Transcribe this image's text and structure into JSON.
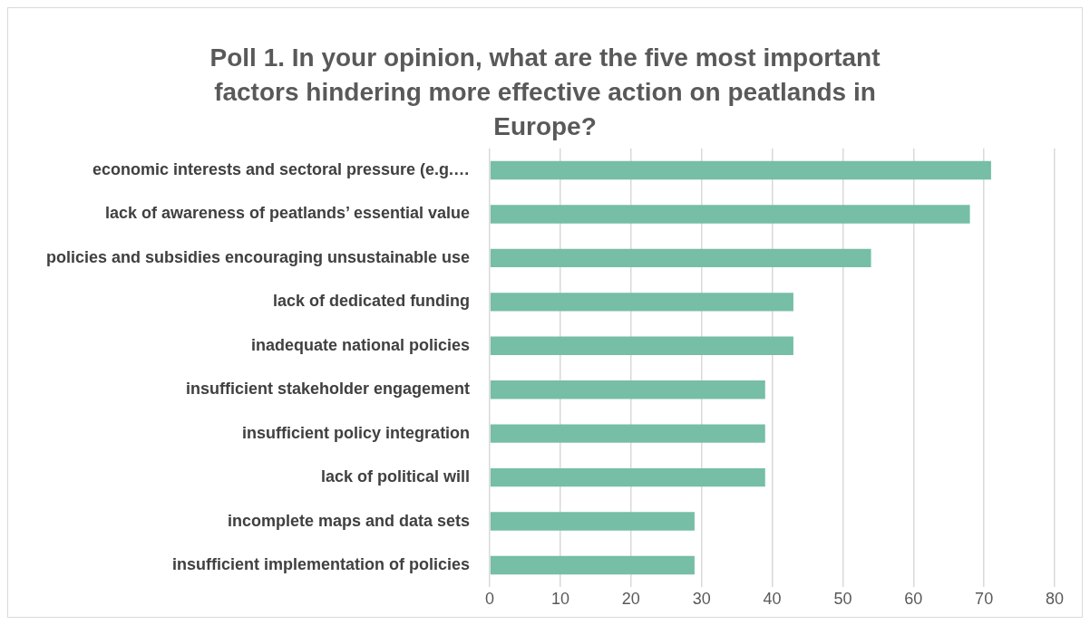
{
  "chart_data": {
    "type": "bar",
    "orientation": "horizontal",
    "title": "Poll 1. In your opinion, what are the five most important factors hindering more effective action on peatlands in Europe?",
    "categories": [
      "economic interests and sectoral pressure (e.g.…",
      "lack of awareness of peatlands’ essential value",
      "policies and subsidies encouraging unsustainable use",
      "lack of dedicated funding",
      "inadequate national policies",
      "insufficient stakeholder engagement",
      "insufficient policy integration",
      "lack of political will",
      "incomplete maps and data sets",
      "insufficient implementation of policies"
    ],
    "values": [
      71,
      68,
      54,
      43,
      43,
      39,
      39,
      39,
      29,
      29
    ],
    "color": "#76bea6",
    "xlim": [
      0,
      80
    ],
    "xticks": [
      0,
      10,
      20,
      30,
      40,
      50,
      60,
      70,
      80
    ],
    "grid": "x",
    "legend": false
  }
}
